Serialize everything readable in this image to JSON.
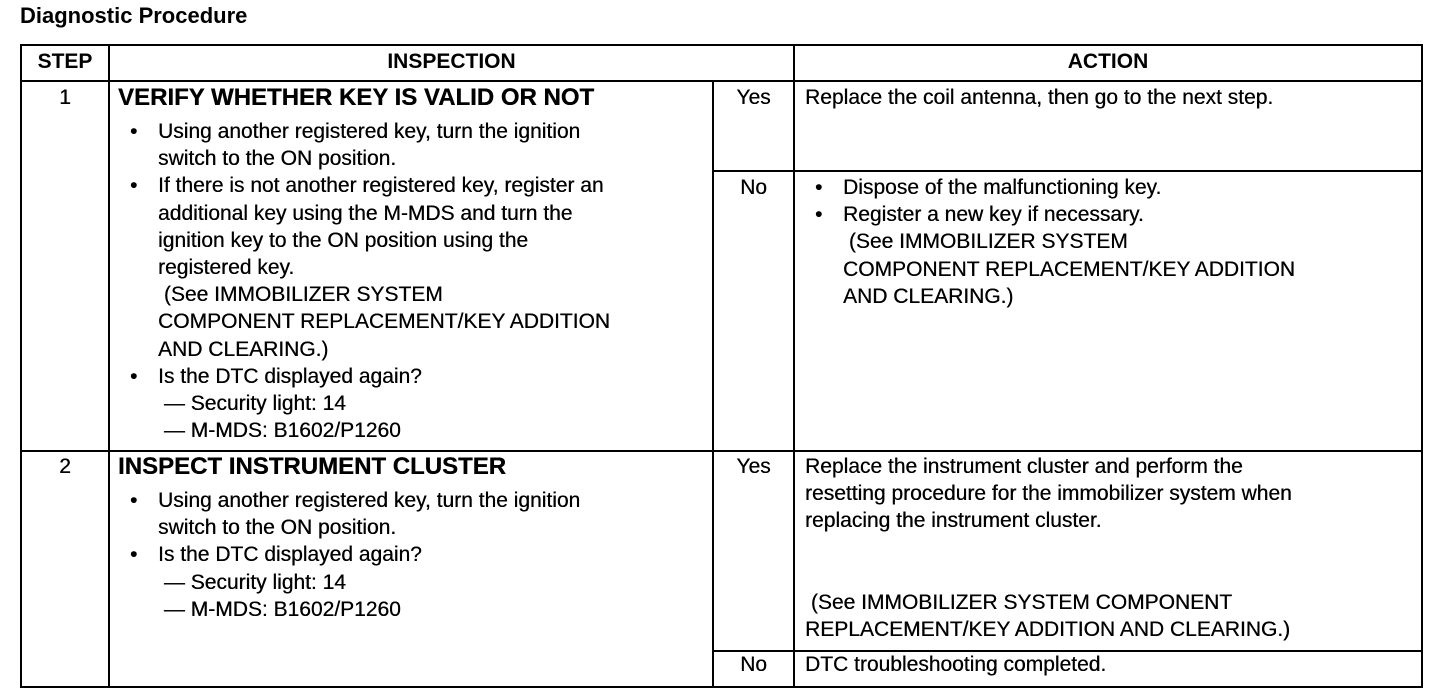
{
  "title": "Diagnostic Procedure",
  "headers": {
    "step": "STEP",
    "inspection": "INSPECTION",
    "action": "ACTION"
  },
  "rows": [
    {
      "step": "1",
      "title": "VERIFY WHETHER KEY IS VALID OR NOT",
      "bullets": [
        {
          "lines": [
            "Using another registered key, turn the ignition",
            "switch to the ON position."
          ]
        },
        {
          "lines": [
            "If there is not another registered key, register an",
            "additional key using the M-MDS and turn the",
            "ignition key to the ON position using the",
            "registered key.",
            " (See IMMOBILIZER SYSTEM",
            "COMPONENT REPLACEMENT/KEY ADDITION",
            "AND CLEARING.)"
          ]
        },
        {
          "lines": [
            "Is the DTC displayed again?",
            " — Security light: 14",
            " — M-MDS: B1602/P1260"
          ]
        }
      ],
      "yes_label": "Yes",
      "yes_action": [
        "Replace the coil antenna, then go to the next step."
      ],
      "no_label": "No",
      "no_bullets": [
        {
          "lines": [
            "Dispose of the malfunctioning key."
          ]
        },
        {
          "lines": [
            "Register a new key if necessary.",
            " (See IMMOBILIZER SYSTEM",
            "COMPONENT REPLACEMENT/KEY ADDITION",
            "AND CLEARING.)"
          ]
        }
      ]
    },
    {
      "step": "2",
      "title": "INSPECT INSTRUMENT CLUSTER",
      "bullets": [
        {
          "lines": [
            "Using another registered key, turn the ignition",
            "switch to the ON position."
          ]
        },
        {
          "lines": [
            "Is the DTC displayed again?",
            " — Security light: 14",
            " — M-MDS: B1602/P1260"
          ]
        }
      ],
      "yes_label": "Yes",
      "yes_action": [
        "Replace the instrument cluster and perform the",
        "resetting procedure for the immobilizer system when",
        "replacing the instrument cluster."
      ],
      "yes_ref": [
        " (See IMMOBILIZER SYSTEM COMPONENT",
        "REPLACEMENT/KEY ADDITION AND CLEARING.)"
      ],
      "no_label": "No",
      "no_action": [
        "DTC troubleshooting completed."
      ]
    }
  ]
}
